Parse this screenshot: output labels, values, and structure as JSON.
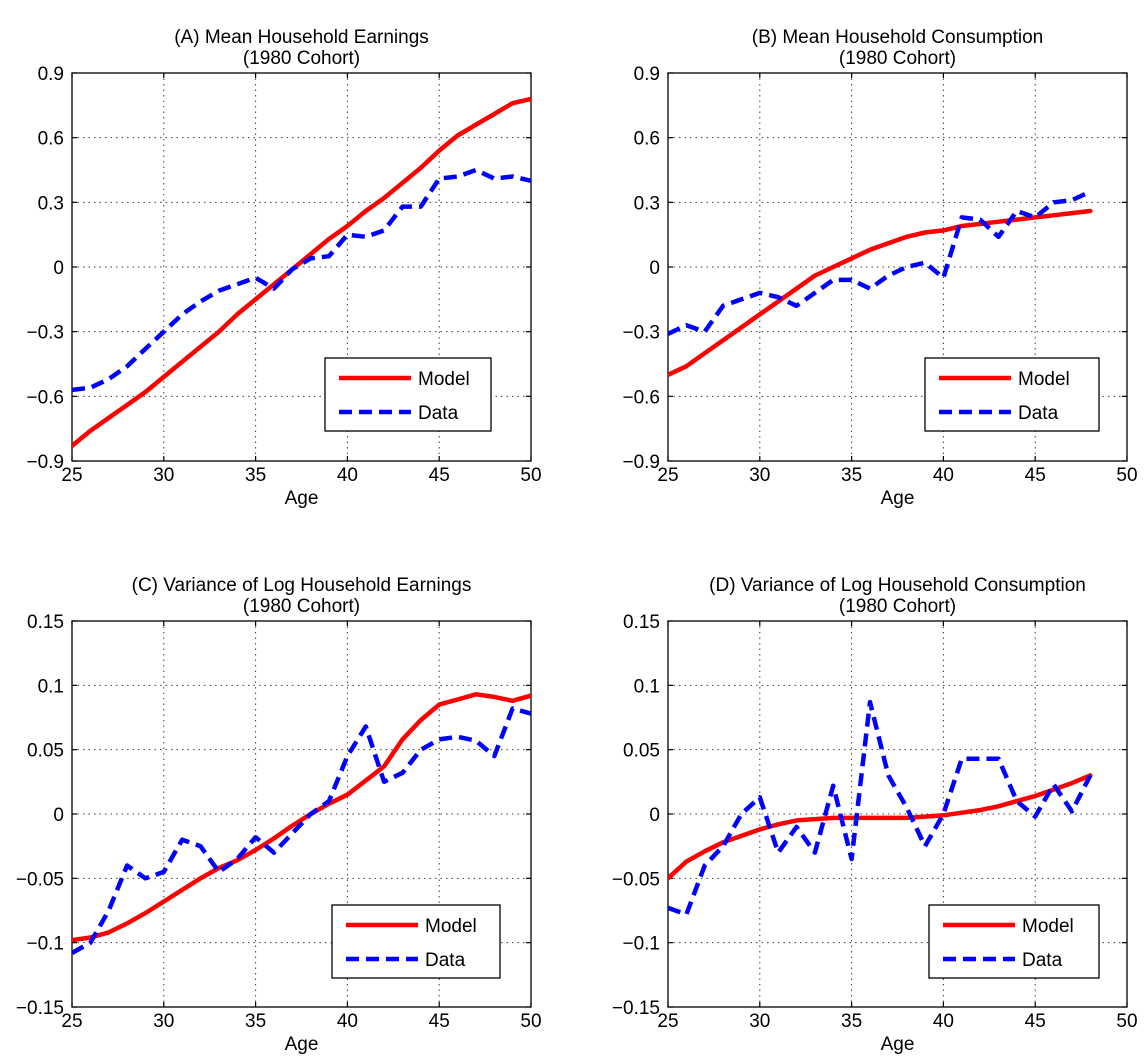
{
  "chart_data": [
    {
      "type": "line",
      "panel": "A",
      "title": "(A) Mean Household Earnings",
      "subtitle": "(1980 Cohort)",
      "xlabel": "Age",
      "ylabel": "",
      "xlim": [
        25,
        50
      ],
      "ylim": [
        -0.9,
        0.9
      ],
      "xticks": [
        25,
        30,
        35,
        40,
        45,
        50
      ],
      "xtick_labels": [
        "25",
        "30",
        "35",
        "40",
        "45",
        "50"
      ],
      "yticks": [
        -0.9,
        -0.6,
        -0.3,
        0,
        0.3,
        0.6,
        0.9
      ],
      "ytick_labels": [
        "−0.9",
        "−0.6",
        "−0.3",
        "0",
        "0.3",
        "0.6",
        "0.9"
      ],
      "grid": true,
      "legend_position": "lower-right",
      "series": [
        {
          "name": "Model",
          "color": "#ff0000",
          "style": "solid",
          "x": [
            25,
            26,
            27,
            28,
            29,
            30,
            31,
            32,
            33,
            34,
            35,
            36,
            37,
            38,
            39,
            40,
            41,
            42,
            43,
            44,
            45,
            46,
            47,
            48,
            49,
            50
          ],
          "y": [
            -0.83,
            -0.76,
            -0.7,
            -0.64,
            -0.58,
            -0.51,
            -0.44,
            -0.37,
            -0.3,
            -0.22,
            -0.15,
            -0.08,
            -0.01,
            0.06,
            0.13,
            0.19,
            0.26,
            0.32,
            0.39,
            0.46,
            0.54,
            0.61,
            0.66,
            0.71,
            0.76,
            0.78
          ]
        },
        {
          "name": "Data",
          "color": "#0000ff",
          "style": "dashed",
          "x": [
            25,
            26,
            27,
            28,
            29,
            30,
            31,
            32,
            33,
            34,
            35,
            36,
            37,
            38,
            39,
            40,
            41,
            42,
            43,
            44,
            45,
            46,
            47,
            48,
            49,
            50
          ],
          "y": [
            -0.57,
            -0.56,
            -0.52,
            -0.46,
            -0.38,
            -0.3,
            -0.22,
            -0.16,
            -0.11,
            -0.08,
            -0.05,
            -0.1,
            -0.01,
            0.04,
            0.05,
            0.15,
            0.14,
            0.17,
            0.28,
            0.28,
            0.41,
            0.42,
            0.45,
            0.41,
            0.42,
            0.4
          ]
        }
      ]
    },
    {
      "type": "line",
      "panel": "B",
      "title": "(B) Mean Household Consumption",
      "subtitle": "(1980 Cohort)",
      "xlabel": "Age",
      "ylabel": "",
      "xlim": [
        25,
        50
      ],
      "ylim": [
        -0.9,
        0.9
      ],
      "xticks": [
        25,
        30,
        35,
        40,
        45,
        50
      ],
      "xtick_labels": [
        "25",
        "30",
        "35",
        "40",
        "45",
        "50"
      ],
      "yticks": [
        -0.9,
        -0.6,
        -0.3,
        0,
        0.3,
        0.6,
        0.9
      ],
      "ytick_labels": [
        "−0.9",
        "−0.6",
        "−0.3",
        "0",
        "0.3",
        "0.6",
        "0.9"
      ],
      "grid": true,
      "legend_position": "lower-right",
      "series": [
        {
          "name": "Model",
          "color": "#ff0000",
          "style": "solid",
          "x": [
            25,
            26,
            27,
            28,
            29,
            30,
            31,
            32,
            33,
            34,
            35,
            36,
            37,
            38,
            39,
            40,
            41,
            42,
            43,
            44,
            45,
            46,
            47,
            48
          ],
          "y": [
            -0.5,
            -0.46,
            -0.4,
            -0.34,
            -0.28,
            -0.22,
            -0.16,
            -0.1,
            -0.04,
            0.0,
            0.04,
            0.08,
            0.11,
            0.14,
            0.16,
            0.17,
            0.19,
            0.2,
            0.21,
            0.22,
            0.23,
            0.24,
            0.25,
            0.26
          ]
        },
        {
          "name": "Data",
          "color": "#0000ff",
          "style": "dashed",
          "x": [
            25,
            26,
            27,
            28,
            29,
            30,
            31,
            32,
            33,
            34,
            35,
            36,
            37,
            38,
            39,
            40,
            41,
            42,
            43,
            44,
            45,
            46,
            47,
            48
          ],
          "y": [
            -0.31,
            -0.27,
            -0.3,
            -0.18,
            -0.15,
            -0.12,
            -0.14,
            -0.18,
            -0.12,
            -0.06,
            -0.06,
            -0.1,
            -0.04,
            0.0,
            0.02,
            -0.05,
            0.23,
            0.22,
            0.14,
            0.26,
            0.23,
            0.3,
            0.31,
            0.35
          ]
        }
      ]
    },
    {
      "type": "line",
      "panel": "C",
      "title": "(C) Variance of Log Household Earnings",
      "subtitle": "(1980 Cohort)",
      "xlabel": "Age",
      "ylabel": "",
      "xlim": [
        25,
        50
      ],
      "ylim": [
        -0.15,
        0.15
      ],
      "xticks": [
        25,
        30,
        35,
        40,
        45,
        50
      ],
      "xtick_labels": [
        "25",
        "30",
        "35",
        "40",
        "45",
        "50"
      ],
      "yticks": [
        -0.15,
        -0.1,
        -0.05,
        0,
        0.05,
        0.1,
        0.15
      ],
      "ytick_labels": [
        "−0.15",
        "−0.1",
        "−0.05",
        "0",
        "0.05",
        "0.1",
        "0.15"
      ],
      "grid": true,
      "legend_position": "lower-right",
      "series": [
        {
          "name": "Model",
          "color": "#ff0000",
          "style": "solid",
          "x": [
            25,
            26,
            27,
            28,
            29,
            30,
            31,
            32,
            33,
            34,
            35,
            36,
            37,
            38,
            39,
            40,
            41,
            42,
            43,
            44,
            45,
            46,
            47,
            48,
            49,
            50
          ],
          "y": [
            -0.098,
            -0.096,
            -0.092,
            -0.085,
            -0.077,
            -0.068,
            -0.059,
            -0.05,
            -0.042,
            -0.036,
            -0.028,
            -0.019,
            -0.009,
            0.0,
            0.008,
            0.015,
            0.026,
            0.037,
            0.058,
            0.073,
            0.085,
            0.089,
            0.093,
            0.091,
            0.088,
            0.092
          ]
        },
        {
          "name": "Data",
          "color": "#0000ff",
          "style": "dashed",
          "x": [
            25,
            26,
            27,
            28,
            29,
            30,
            31,
            32,
            33,
            34,
            35,
            36,
            37,
            38,
            39,
            40,
            41,
            42,
            43,
            44,
            45,
            46,
            47,
            48,
            49,
            50
          ],
          "y": [
            -0.108,
            -0.1,
            -0.075,
            -0.04,
            -0.05,
            -0.045,
            -0.02,
            -0.025,
            -0.045,
            -0.035,
            -0.018,
            -0.03,
            -0.015,
            0.0,
            0.01,
            0.045,
            0.068,
            0.025,
            0.032,
            0.05,
            0.058,
            0.06,
            0.057,
            0.045,
            0.082,
            0.078
          ]
        }
      ]
    },
    {
      "type": "line",
      "panel": "D",
      "title": "(D) Variance of Log Household Consumption",
      "subtitle": "(1980 Cohort)",
      "xlabel": "Age",
      "ylabel": "",
      "xlim": [
        25,
        50
      ],
      "ylim": [
        -0.15,
        0.15
      ],
      "xticks": [
        25,
        30,
        35,
        40,
        45,
        50
      ],
      "xtick_labels": [
        "25",
        "30",
        "35",
        "40",
        "45",
        "50"
      ],
      "yticks": [
        -0.15,
        -0.1,
        -0.05,
        0,
        0.05,
        0.1,
        0.15
      ],
      "ytick_labels": [
        "−0.15",
        "−0.1",
        "−0.05",
        "0",
        "0.05",
        "0.1",
        "0.15"
      ],
      "grid": true,
      "legend_position": "lower-right",
      "series": [
        {
          "name": "Model",
          "color": "#ff0000",
          "style": "solid",
          "x": [
            25,
            26,
            27,
            28,
            29,
            30,
            31,
            32,
            33,
            34,
            35,
            36,
            37,
            38,
            39,
            40,
            41,
            42,
            43,
            44,
            45,
            46,
            47,
            48
          ],
          "y": [
            -0.05,
            -0.037,
            -0.029,
            -0.022,
            -0.017,
            -0.012,
            -0.008,
            -0.005,
            -0.004,
            -0.003,
            -0.003,
            -0.003,
            -0.003,
            -0.003,
            -0.002,
            -0.001,
            0.001,
            0.003,
            0.006,
            0.01,
            0.014,
            0.019,
            0.024,
            0.03
          ]
        },
        {
          "name": "Data",
          "color": "#0000ff",
          "style": "dashed",
          "x": [
            25,
            26,
            27,
            28,
            29,
            30,
            31,
            32,
            33,
            34,
            35,
            36,
            37,
            38,
            39,
            40,
            41,
            42,
            43,
            44,
            45,
            46,
            47,
            48
          ],
          "y": [
            -0.073,
            -0.078,
            -0.04,
            -0.025,
            0.0,
            0.013,
            -0.03,
            -0.01,
            -0.03,
            0.022,
            -0.035,
            0.087,
            0.03,
            0.005,
            -0.025,
            0.0,
            0.043,
            0.043,
            0.043,
            0.01,
            -0.002,
            0.023,
            0.002,
            0.03
          ]
        }
      ]
    }
  ]
}
